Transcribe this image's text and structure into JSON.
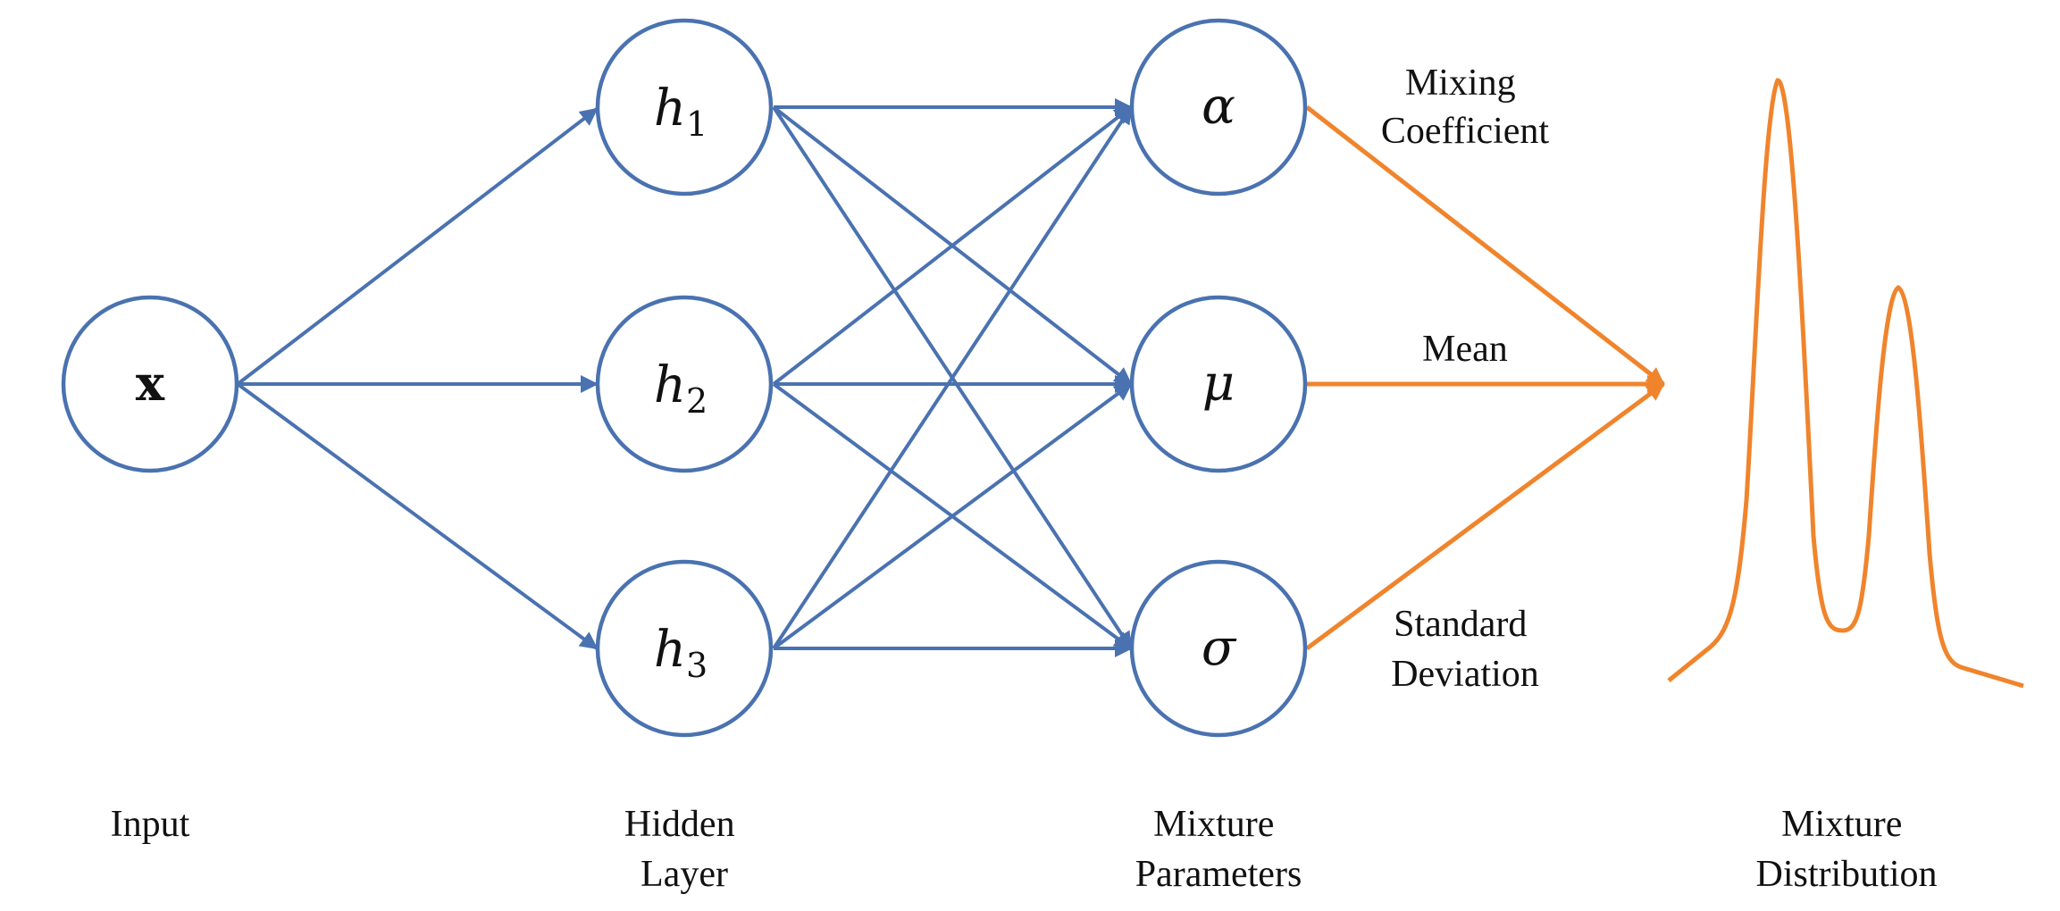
{
  "nodes": {
    "input": "x",
    "hidden": [
      {
        "base": "h",
        "sub": "1"
      },
      {
        "base": "h",
        "sub": "2"
      },
      {
        "base": "h",
        "sub": "3"
      }
    ],
    "params": [
      "α",
      "μ",
      "σ"
    ]
  },
  "param_labels": {
    "alpha": [
      "Mixing",
      "Coefficient"
    ],
    "mu": [
      "Mean"
    ],
    "sigma": [
      "Standard",
      "Deviation"
    ]
  },
  "columns": {
    "input": [
      "Input"
    ],
    "hidden": [
      "Hidden",
      "Layer"
    ],
    "params": [
      "Mixture",
      "Parameters"
    ],
    "distribution": [
      "Mixture",
      "Distribution"
    ]
  },
  "colors": {
    "network": "#4a72b0",
    "output": "#f0842c"
  }
}
